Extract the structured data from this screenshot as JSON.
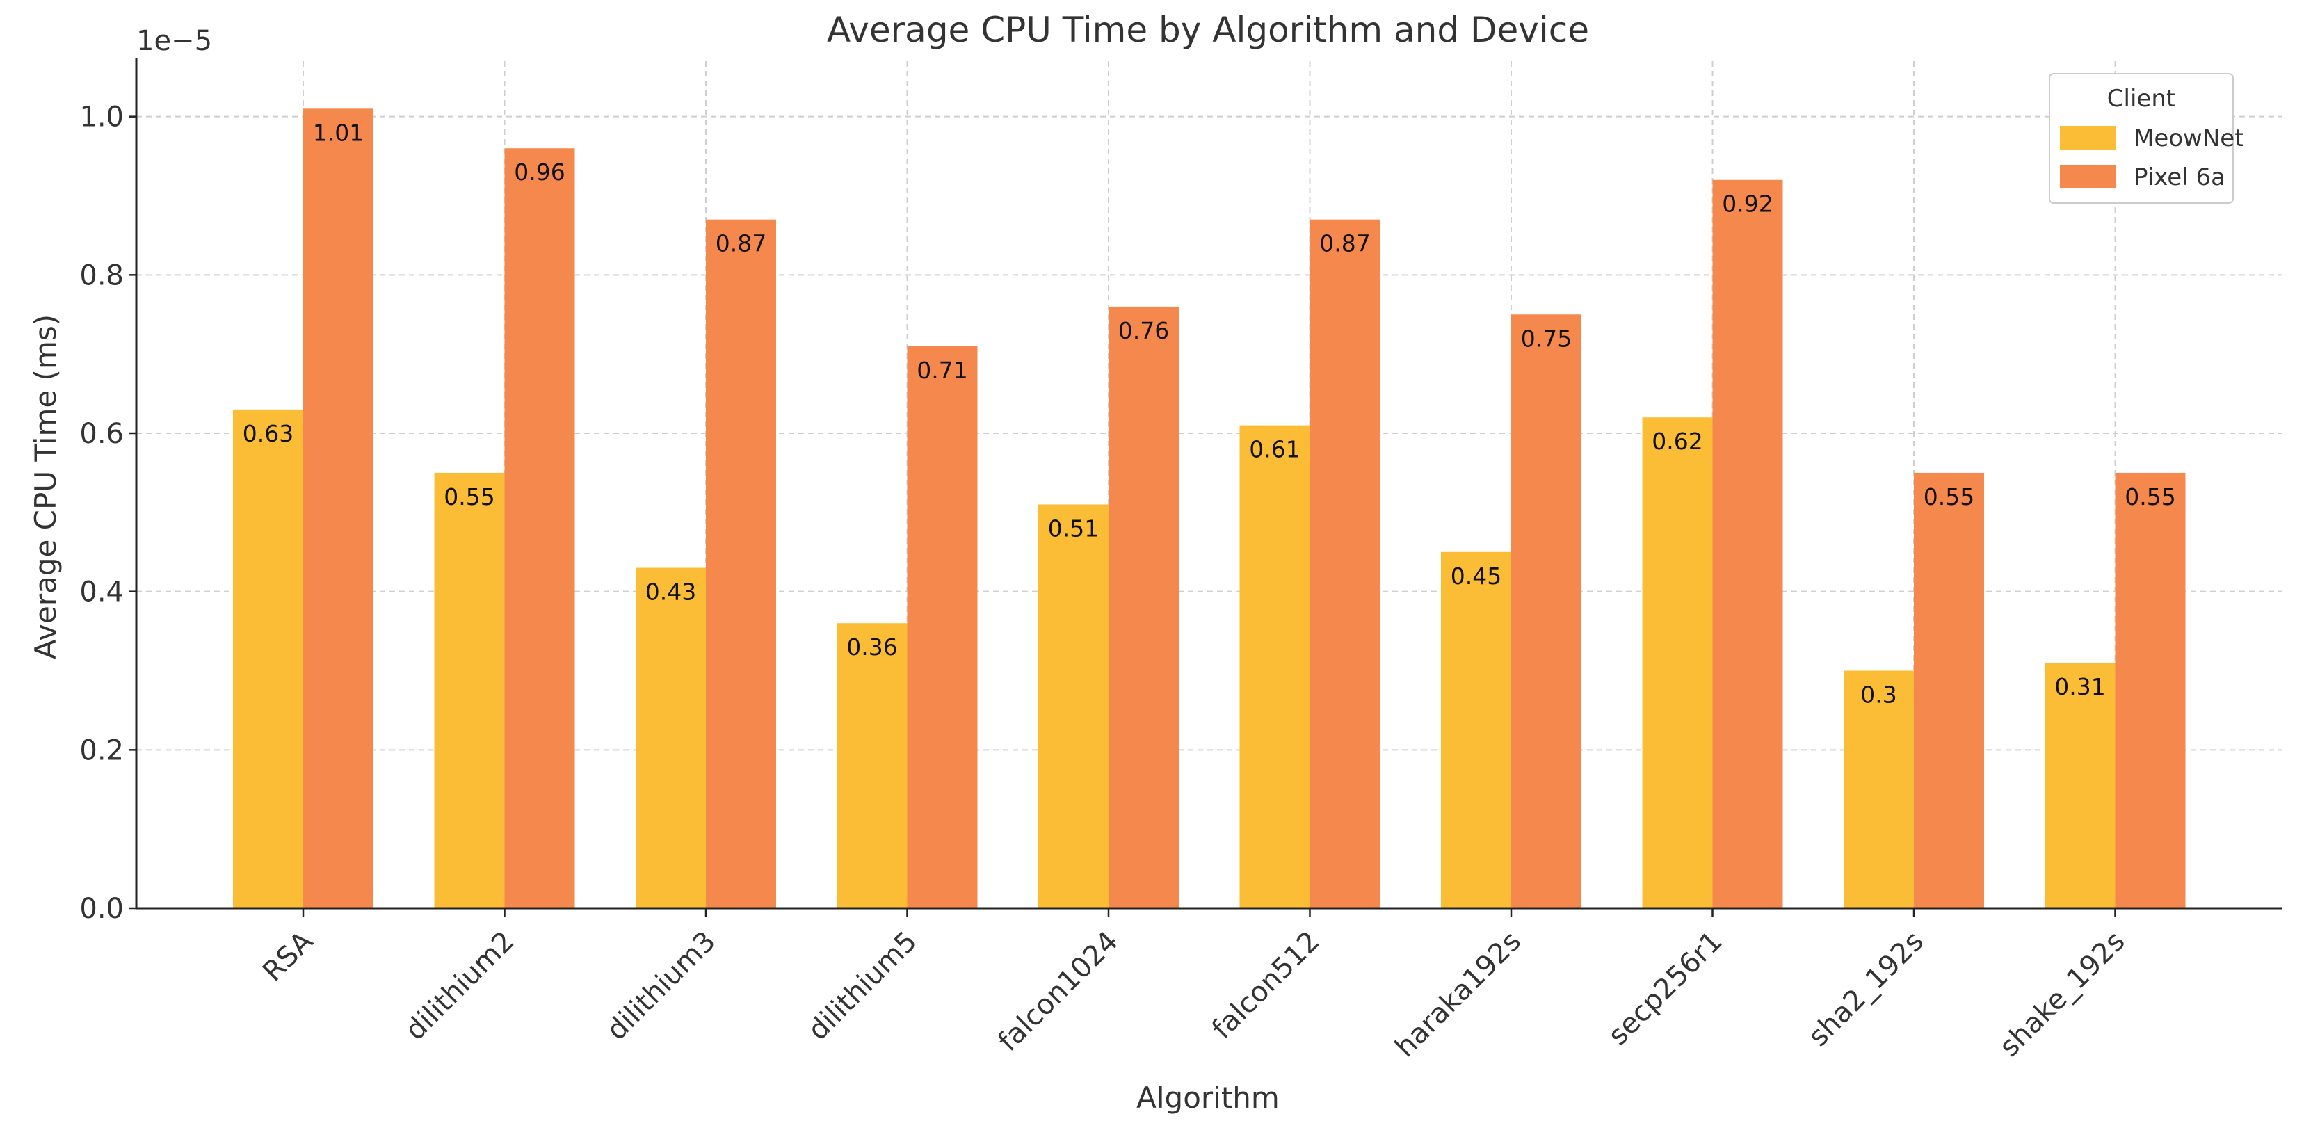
{
  "chart_data": {
    "type": "bar",
    "title": "Average CPU Time by Algorithm and Device",
    "xlabel": "Algorithm",
    "ylabel": "Average CPU Time (ms)",
    "y_offset_label": "1e−5",
    "ylim": [
      0,
      1.07
    ],
    "yticks": [
      0.0,
      0.2,
      0.4,
      0.6,
      0.8,
      1.0
    ],
    "ytick_labels": [
      "0.0",
      "0.2",
      "0.4",
      "0.6",
      "0.8",
      "1.0"
    ],
    "grid": true,
    "legend_title": "Client",
    "legend_position": "top-right",
    "categories": [
      "RSA",
      "dilithium2",
      "dilithium3",
      "dilithium5",
      "falcon1024",
      "falcon512",
      "haraka192s",
      "secp256r1",
      "sha2_192s",
      "shake_192s"
    ],
    "series": [
      {
        "name": "MeowNet",
        "color": "#fbbd35",
        "values": [
          0.63,
          0.55,
          0.43,
          0.36,
          0.51,
          0.61,
          0.45,
          0.62,
          0.3,
          0.31
        ],
        "labels": [
          "0.63",
          "0.55",
          "0.43",
          "0.36",
          "0.51",
          "0.61",
          "0.45",
          "0.62",
          "0.3",
          "0.31"
        ]
      },
      {
        "name": "Pixel 6a",
        "color": "#f4884d",
        "values": [
          1.01,
          0.96,
          0.87,
          0.71,
          0.76,
          0.87,
          0.75,
          0.92,
          0.55,
          0.55
        ],
        "labels": [
          "1.01",
          "0.96",
          "0.87",
          "0.71",
          "0.76",
          "0.87",
          "0.75",
          "0.92",
          "0.55",
          "0.55"
        ]
      }
    ]
  }
}
